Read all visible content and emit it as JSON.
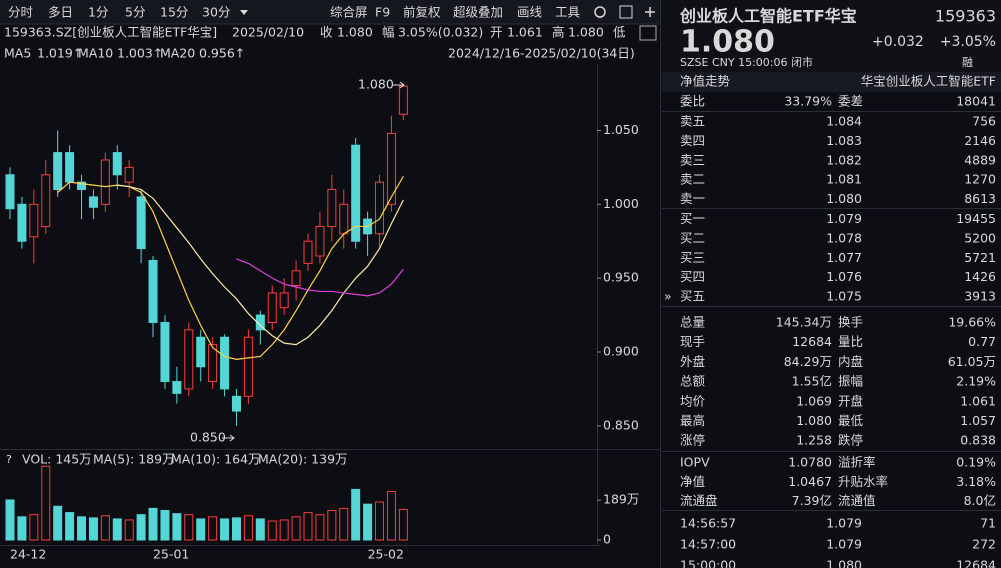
{
  "toolbar": {
    "periods": [
      "分时",
      "多日",
      "1分",
      "5分",
      "15分",
      "30分"
    ],
    "tools": [
      "综合屏",
      "F9",
      "前复权",
      "超级叠加",
      "画线",
      "工具"
    ]
  },
  "quote_bar": [
    {
      "text": "159363.SZ[创业板人工智能ETF华宝]",
      "color": "#d9d9d9"
    },
    {
      "text": "2025/02/10",
      "color": "#d9d9d9"
    },
    {
      "text": "收",
      "color": "#d9d9d9"
    },
    {
      "text": "1.080",
      "color": "#ff4545"
    },
    {
      "text": "幅",
      "color": "#d9d9d9"
    },
    {
      "text": "3.05%(0.032)",
      "color": "#ff4545"
    },
    {
      "text": "开",
      "color": "#d9d9d9"
    },
    {
      "text": "1.061",
      "color": "#ff4545"
    },
    {
      "text": "高",
      "color": "#d9d9d9"
    },
    {
      "text": "1.080",
      "color": "#ff4545"
    },
    {
      "text": "低",
      "color": "#d9d9d9"
    }
  ],
  "ma_legend": [
    {
      "name": "MA5",
      "value": "1.019↑",
      "color": "#ffd24d"
    },
    {
      "name": "MA10",
      "value": "1.003↑",
      "color": "#ffe9a8"
    },
    {
      "name": "MA20",
      "value": "0.956↑",
      "color": "#e040e0"
    }
  ],
  "range": "2024/12/16-2025/02/10(34日)",
  "kline": {
    "up_color": "#ff3b3b",
    "down_color": "#54d6d6",
    "dates": [
      "24-12",
      null,
      null,
      null,
      null,
      null,
      null,
      null,
      null,
      null,
      null,
      null,
      "25-01",
      null,
      null,
      null,
      null,
      null,
      null,
      null,
      null,
      null,
      null,
      null,
      null,
      null,
      null,
      null,
      null,
      null,
      "25-02",
      null,
      null,
      null
    ],
    "open": [
      1.02,
      1.0,
      0.978,
      0.985,
      1.035,
      1.035,
      1.015,
      1.005,
      1.0,
      1.035,
      1.015,
      1.005,
      0.962,
      0.92,
      0.88,
      0.875,
      0.91,
      0.88,
      0.91,
      0.87,
      0.87,
      0.925,
      0.92,
      0.93,
      0.945,
      0.96,
      0.965,
      0.985,
      0.98,
      1.04,
      0.99,
      0.98,
      1.0,
      1.061
    ],
    "close": [
      0.997,
      0.975,
      1.0,
      1.02,
      1.01,
      1.015,
      1.01,
      0.998,
      1.03,
      1.02,
      1.025,
      0.97,
      0.92,
      0.88,
      0.872,
      0.915,
      0.89,
      0.905,
      0.875,
      0.86,
      0.91,
      0.915,
      0.94,
      0.94,
      0.955,
      0.975,
      0.985,
      1.01,
      1.0,
      0.975,
      0.98,
      1.015,
      1.048,
      1.08
    ],
    "high": [
      1.025,
      1.005,
      1.01,
      1.03,
      1.05,
      1.04,
      1.02,
      1.01,
      1.035,
      1.04,
      1.03,
      1.01,
      0.965,
      0.925,
      0.89,
      0.92,
      0.915,
      0.91,
      0.912,
      0.875,
      0.915,
      0.928,
      0.945,
      0.95,
      0.962,
      0.98,
      0.995,
      1.02,
      1.01,
      1.045,
      0.995,
      1.02,
      1.06,
      1.08
    ],
    "low": [
      0.99,
      0.97,
      0.96,
      0.98,
      1.005,
      1.01,
      0.99,
      0.99,
      0.995,
      1.01,
      1.005,
      0.96,
      0.91,
      0.875,
      0.865,
      0.87,
      0.88,
      0.875,
      0.87,
      0.85,
      0.865,
      0.905,
      0.915,
      0.925,
      0.935,
      0.955,
      0.96,
      0.975,
      0.97,
      0.97,
      0.965,
      0.97,
      0.995,
      1.057
    ],
    "ma5": [
      null,
      null,
      null,
      null,
      1.008,
      1.015,
      1.014,
      1.013,
      1.012,
      1.013,
      1.012,
      1.008,
      0.995,
      0.975,
      0.955,
      0.935,
      0.918,
      0.903,
      0.897,
      0.895,
      0.896,
      0.897,
      0.905,
      0.915,
      0.928,
      0.942,
      0.955,
      0.97,
      0.98,
      0.985,
      0.985,
      0.99,
      1.005,
      1.019
    ],
    "ma10": [
      null,
      null,
      null,
      null,
      null,
      null,
      null,
      null,
      null,
      1.013,
      1.012,
      1.01,
      1.004,
      0.994,
      0.984,
      0.974,
      0.963,
      0.953,
      0.944,
      0.936,
      0.926,
      0.918,
      0.911,
      0.906,
      0.905,
      0.91,
      0.918,
      0.928,
      0.94,
      0.95,
      0.958,
      0.97,
      0.987,
      1.003
    ],
    "ma20": [
      null,
      null,
      null,
      null,
      null,
      null,
      null,
      null,
      null,
      null,
      null,
      null,
      null,
      null,
      null,
      null,
      null,
      null,
      null,
      0.963,
      0.96,
      0.955,
      0.95,
      0.946,
      0.944,
      0.942,
      0.941,
      0.941,
      0.94,
      0.939,
      0.938,
      0.94,
      0.946,
      0.956
    ],
    "ylim": [
      0.835,
      1.095
    ],
    "yticks": [
      {
        "value": 1.05,
        "label": "1.050"
      },
      {
        "value": 1.0,
        "label": "1.000"
      },
      {
        "value": 0.95,
        "label": "0.950"
      },
      {
        "value": 0.9,
        "label": "0.900"
      },
      {
        "value": 0.85,
        "label": "0.850"
      }
    ],
    "high_label": "1.080",
    "low_label": "0.850"
  },
  "volume": {
    "legend": [
      {
        "text": "VOL: 145万",
        "color": "#d9d9d9"
      },
      {
        "text": "MA(5): 189万",
        "color": "#d9d9d9"
      },
      {
        "text": "MA(10): 164万",
        "color": "#ffb84d"
      },
      {
        "text": "MA(20): 139万",
        "color": "#e040e0"
      }
    ],
    "values": [
      190,
      110,
      120,
      350,
      160,
      130,
      110,
      105,
      115,
      100,
      95,
      120,
      150,
      140,
      125,
      120,
      100,
      110,
      100,
      105,
      115,
      100,
      90,
      95,
      110,
      130,
      120,
      140,
      150,
      240,
      170,
      180,
      230,
      145
    ],
    "ylim": [
      0,
      370
    ],
    "yticks": [
      {
        "value": 189,
        "label": "189万"
      },
      0
    ]
  },
  "panel": {
    "name": "创业板人工智能ETF华宝",
    "code": "159363",
    "price": "1.080",
    "change": "+0.032",
    "change_pct": "+3.05%",
    "status": "SZSE  CNY  15:00:06  闭市",
    "badge": "融",
    "tabs": [
      "净值走势",
      "华宝创业板人工智能ETF"
    ],
    "order_ratio": [
      {
        "label": "委比",
        "value": "33.79%",
        "color": "#ff4545"
      },
      {
        "label": "委差",
        "value": "18041",
        "color": "#ff4545"
      }
    ],
    "book": [
      {
        "label": "卖五",
        "price": "1.084",
        "volume": "756"
      },
      {
        "label": "卖四",
        "price": "1.083",
        "volume": "2146"
      },
      {
        "label": "卖三",
        "price": "1.082",
        "volume": "4889"
      },
      {
        "label": "卖二",
        "price": "1.081",
        "volume": "1270"
      },
      {
        "label": "卖一",
        "price": "1.080",
        "volume": "8613"
      },
      {
        "label": "买一",
        "price": "1.079",
        "volume": "19455"
      },
      {
        "label": "买二",
        "price": "1.078",
        "volume": "5200"
      },
      {
        "label": "买三",
        "price": "1.077",
        "volume": "5721"
      },
      {
        "label": "买四",
        "price": "1.076",
        "volume": "1426"
      },
      {
        "label": "买五",
        "price": "1.075",
        "volume": "3913"
      }
    ],
    "stats": [
      [
        {
          "label": "总量",
          "value": "145.34万",
          "color": "#e0e0e0"
        },
        {
          "label": "换手",
          "value": "19.66%",
          "color": "#e0e0e0"
        }
      ],
      [
        {
          "label": "现手",
          "value": "12684",
          "color": "#e0e0e0"
        },
        {
          "label": "量比",
          "value": "0.77",
          "color": "#e0e0e0"
        }
      ],
      [
        {
          "label": "外盘",
          "value": "84.29万",
          "color": "#ff4545"
        },
        {
          "label": "内盘",
          "value": "61.05万",
          "color": "#33cc33"
        }
      ],
      [
        {
          "label": "总额",
          "value": "1.55亿",
          "color": "#e0e0e0"
        },
        {
          "label": "振幅",
          "value": "2.19%",
          "color": "#e0e0e0"
        }
      ],
      [
        {
          "label": "均价",
          "value": "1.069",
          "color": "#ff4545"
        },
        {
          "label": "开盘",
          "value": "1.061",
          "color": "#ff4545"
        }
      ],
      [
        {
          "label": "最高",
          "value": "1.080",
          "color": "#ff4545"
        },
        {
          "label": "最低",
          "value": "1.057",
          "color": "#ff4545"
        }
      ],
      [
        {
          "label": "涨停",
          "value": "1.258",
          "color": "#ff4545"
        },
        {
          "label": "跌停",
          "value": "0.838",
          "color": "#33cc33"
        }
      ]
    ],
    "fund": [
      [
        {
          "label": "IOPV",
          "value": "1.0780",
          "color": "#e0e0e0"
        },
        {
          "label": "溢折率",
          "value": "0.19%",
          "color": "#ff4545"
        }
      ],
      [
        {
          "label": "净值",
          "value": "1.0467",
          "color": "#e0e0e0"
        },
        {
          "label": "升贴水率",
          "value": "3.18%",
          "color": "#ff4545"
        }
      ],
      [
        {
          "label": "流通盘",
          "value": "7.39亿",
          "color": "#e0e0e0"
        },
        {
          "label": "流通值",
          "value": "8.0亿",
          "color": "#e0e0e0"
        }
      ]
    ],
    "trades": [
      {
        "time": "14:56:57",
        "price": "1.079",
        "volume": "71",
        "color": "#33cc33"
      },
      {
        "time": "14:57:00",
        "price": "1.079",
        "volume": "272",
        "color": "#33cc33"
      },
      {
        "time": "15:00:00",
        "price": "1.080",
        "volume": "12684",
        "color": "#ff4545"
      }
    ]
  }
}
